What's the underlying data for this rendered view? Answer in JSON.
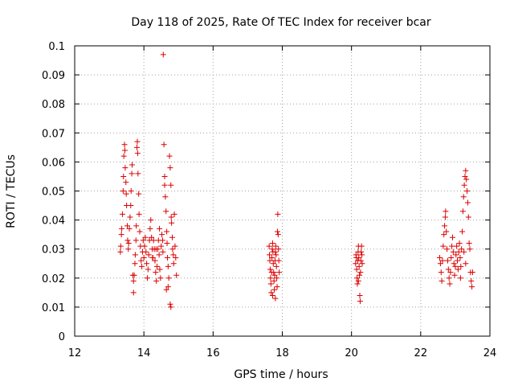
{
  "chart_data": {
    "type": "scatter",
    "title": "Day 118 of 2025, Rate Of TEC Index for receiver bcar",
    "xlabel": "GPS time / hours",
    "ylabel": "ROTI / TECUs",
    "xlim": [
      12,
      24
    ],
    "ylim": [
      0,
      0.1
    ],
    "x_ticks": [
      "12",
      "14",
      "16",
      "18",
      "20",
      "22",
      "24"
    ],
    "y_ticks": [
      "0",
      "0.01",
      "0.02",
      "0.03",
      "0.04",
      "0.05",
      "0.06",
      "0.07",
      "0.08",
      "0.09",
      "0.1"
    ],
    "grid": true,
    "legend": "none",
    "marker": "plus",
    "color": "#dd0000",
    "series": [
      {
        "points": [
          [
            13.32,
            0.029
          ],
          [
            13.33,
            0.031
          ],
          [
            13.35,
            0.035
          ],
          [
            13.36,
            0.037
          ],
          [
            13.38,
            0.042
          ],
          [
            13.4,
            0.05
          ],
          [
            13.41,
            0.055
          ],
          [
            13.42,
            0.062
          ],
          [
            13.44,
            0.066
          ],
          [
            13.45,
            0.064
          ],
          [
            13.46,
            0.058
          ],
          [
            13.48,
            0.053
          ],
          [
            13.49,
            0.049
          ],
          [
            13.5,
            0.045
          ],
          [
            13.52,
            0.038
          ],
          [
            13.53,
            0.033
          ],
          [
            13.55,
            0.03
          ],
          [
            13.56,
            0.032
          ],
          [
            13.58,
            0.037
          ],
          [
            13.6,
            0.041
          ],
          [
            13.62,
            0.045
          ],
          [
            13.63,
            0.05
          ],
          [
            13.65,
            0.056
          ],
          [
            13.66,
            0.059
          ],
          [
            13.68,
            0.021
          ],
          [
            13.7,
            0.019
          ],
          [
            13.7,
            0.015
          ],
          [
            13.72,
            0.021
          ],
          [
            13.74,
            0.025
          ],
          [
            13.75,
            0.028
          ],
          [
            13.77,
            0.033
          ],
          [
            13.78,
            0.038
          ],
          [
            13.8,
            0.065
          ],
          [
            13.81,
            0.067
          ],
          [
            13.82,
            0.063
          ],
          [
            13.83,
            0.056
          ],
          [
            13.85,
            0.049
          ],
          [
            13.86,
            0.042
          ],
          [
            13.88,
            0.036
          ],
          [
            13.9,
            0.031
          ],
          [
            13.92,
            0.026
          ],
          [
            13.94,
            0.024
          ],
          [
            13.96,
            0.029
          ],
          [
            13.98,
            0.033
          ],
          [
            14.0,
            0.027
          ],
          [
            14.02,
            0.031
          ],
          [
            14.04,
            0.034
          ],
          [
            14.06,
            0.029
          ],
          [
            14.08,
            0.025
          ],
          [
            14.1,
            0.02
          ],
          [
            14.12,
            0.023
          ],
          [
            14.14,
            0.028
          ],
          [
            14.16,
            0.033
          ],
          [
            14.18,
            0.037
          ],
          [
            14.2,
            0.04
          ],
          [
            14.22,
            0.034
          ],
          [
            14.24,
            0.03
          ],
          [
            14.26,
            0.027
          ],
          [
            14.28,
            0.033
          ],
          [
            14.3,
            0.03
          ],
          [
            14.32,
            0.026
          ],
          [
            14.34,
            0.022
          ],
          [
            14.36,
            0.019
          ],
          [
            14.38,
            0.024
          ],
          [
            14.4,
            0.03
          ],
          [
            14.42,
            0.033
          ],
          [
            14.44,
            0.028
          ],
          [
            14.46,
            0.023
          ],
          [
            14.48,
            0.02
          ],
          [
            14.5,
            0.031
          ],
          [
            14.52,
            0.035
          ],
          [
            14.54,
            0.033
          ],
          [
            14.56,
            0.097
          ],
          [
            14.58,
            0.066
          ],
          [
            14.6,
            0.055
          ],
          [
            14.6,
            0.052
          ],
          [
            14.62,
            0.048
          ],
          [
            14.64,
            0.043
          ],
          [
            14.66,
            0.036
          ],
          [
            14.67,
            0.032
          ],
          [
            14.68,
            0.027
          ],
          [
            14.7,
            0.024
          ],
          [
            14.7,
            0.017
          ],
          [
            14.72,
            0.02
          ],
          [
            14.74,
            0.062
          ],
          [
            14.76,
            0.058
          ],
          [
            14.78,
            0.052
          ],
          [
            14.79,
            0.041
          ],
          [
            14.8,
            0.039
          ],
          [
            14.82,
            0.034
          ],
          [
            14.83,
            0.03
          ],
          [
            14.85,
            0.028
          ],
          [
            14.86,
            0.025
          ],
          [
            14.78,
            0.01
          ],
          [
            14.76,
            0.011
          ],
          [
            14.88,
            0.042
          ],
          [
            14.9,
            0.031
          ],
          [
            14.92,
            0.027
          ],
          [
            14.94,
            0.021
          ],
          [
            14.65,
            0.016
          ],
          [
            14.55,
            0.029
          ],
          [
            14.45,
            0.037
          ],
          [
            14.35,
            0.03
          ],
          [
            14.25,
            0.027
          ],
          [
            17.62,
            0.031
          ],
          [
            17.63,
            0.028
          ],
          [
            17.64,
            0.026
          ],
          [
            17.65,
            0.023
          ],
          [
            17.66,
            0.02
          ],
          [
            17.67,
            0.018
          ],
          [
            17.68,
            0.015
          ],
          [
            17.69,
            0.022
          ],
          [
            17.7,
            0.027
          ],
          [
            17.71,
            0.03
          ],
          [
            17.72,
            0.032
          ],
          [
            17.73,
            0.029
          ],
          [
            17.74,
            0.025
          ],
          [
            17.75,
            0.022
          ],
          [
            17.76,
            0.019
          ],
          [
            17.77,
            0.016
          ],
          [
            17.78,
            0.021
          ],
          [
            17.79,
            0.026
          ],
          [
            17.8,
            0.029
          ],
          [
            17.81,
            0.031
          ],
          [
            17.82,
            0.028
          ],
          [
            17.83,
            0.024
          ],
          [
            17.84,
            0.02
          ],
          [
            17.85,
            0.017
          ],
          [
            17.86,
            0.036
          ],
          [
            17.87,
            0.042
          ],
          [
            17.88,
            0.035
          ],
          [
            17.89,
            0.03
          ],
          [
            17.9,
            0.026
          ],
          [
            17.91,
            0.022
          ],
          [
            17.72,
            0.014
          ],
          [
            17.8,
            0.013
          ],
          [
            20.12,
            0.025
          ],
          [
            20.13,
            0.028
          ],
          [
            20.14,
            0.027
          ],
          [
            20.15,
            0.023
          ],
          [
            20.16,
            0.02
          ],
          [
            20.17,
            0.018
          ],
          [
            20.18,
            0.026
          ],
          [
            20.19,
            0.029
          ],
          [
            20.2,
            0.031
          ],
          [
            20.21,
            0.027
          ],
          [
            20.22,
            0.024
          ],
          [
            20.23,
            0.021
          ],
          [
            20.24,
            0.014
          ],
          [
            20.25,
            0.012
          ],
          [
            20.26,
            0.022
          ],
          [
            20.27,
            0.026
          ],
          [
            20.28,
            0.029
          ],
          [
            20.29,
            0.031
          ],
          [
            20.3,
            0.028
          ],
          [
            20.31,
            0.025
          ],
          [
            20.2,
            0.019
          ],
          [
            22.55,
            0.027
          ],
          [
            22.57,
            0.025
          ],
          [
            22.59,
            0.022
          ],
          [
            22.61,
            0.019
          ],
          [
            22.63,
            0.026
          ],
          [
            22.65,
            0.031
          ],
          [
            22.67,
            0.035
          ],
          [
            22.69,
            0.038
          ],
          [
            22.71,
            0.041
          ],
          [
            22.72,
            0.043
          ],
          [
            22.74,
            0.036
          ],
          [
            22.76,
            0.03
          ],
          [
            22.78,
            0.026
          ],
          [
            22.8,
            0.023
          ],
          [
            22.82,
            0.02
          ],
          [
            22.84,
            0.018
          ],
          [
            22.86,
            0.022
          ],
          [
            22.88,
            0.027
          ],
          [
            22.9,
            0.031
          ],
          [
            22.92,
            0.034
          ],
          [
            22.94,
            0.029
          ],
          [
            22.96,
            0.025
          ],
          [
            22.98,
            0.021
          ],
          [
            23.0,
            0.024
          ],
          [
            23.02,
            0.028
          ],
          [
            23.04,
            0.031
          ],
          [
            23.06,
            0.026
          ],
          [
            23.08,
            0.023
          ],
          [
            23.1,
            0.029
          ],
          [
            23.12,
            0.032
          ],
          [
            23.14,
            0.027
          ],
          [
            23.16,
            0.024
          ],
          [
            23.18,
            0.03
          ],
          [
            23.2,
            0.036
          ],
          [
            23.22,
            0.043
          ],
          [
            23.24,
            0.048
          ],
          [
            23.26,
            0.052
          ],
          [
            23.28,
            0.055
          ],
          [
            23.3,
            0.057
          ],
          [
            23.32,
            0.054
          ],
          [
            23.34,
            0.05
          ],
          [
            23.36,
            0.046
          ],
          [
            23.38,
            0.041
          ],
          [
            23.4,
            0.032
          ],
          [
            23.42,
            0.03
          ],
          [
            23.44,
            0.022
          ],
          [
            23.46,
            0.019
          ],
          [
            23.48,
            0.017
          ],
          [
            23.5,
            0.022
          ],
          [
            23.3,
            0.025
          ],
          [
            23.25,
            0.029
          ],
          [
            23.15,
            0.02
          ]
        ]
      }
    ]
  }
}
